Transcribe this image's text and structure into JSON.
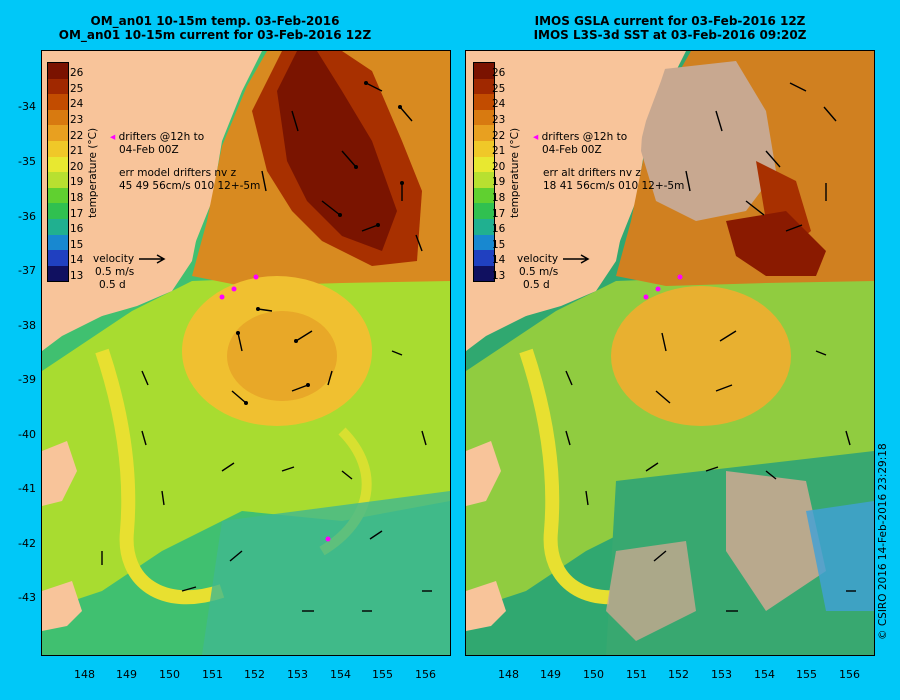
{
  "left": {
    "title_line1": "OM_an01 10-15m temp. 03-Feb-2016",
    "title_line2": "OM_an01 10-15m current for 03-Feb-2016 12Z",
    "drifters_line1": "drifters @12h to",
    "drifters_line2": "04-Feb 00Z",
    "err_line1": "err model drifters nv z",
    "err_line2": "45 49 56cm/s 010 12+-5m"
  },
  "right": {
    "title_line1": "IMOS GSLA current for 03-Feb-2016 12Z",
    "title_line2": "IMOS L3S-3d SST at 03-Feb-2016 09:20Z",
    "drifters_line1": "drifters @12h to",
    "drifters_line2": "04-Feb 00Z",
    "err_line1": "err alt drifters nv z",
    "err_line2": "18 41 56cm/s 010 12+-5m"
  },
  "velocity": {
    "title": "velocity",
    "speed": "0.5 m/s",
    "duration": "0.5 d"
  },
  "colorbar": {
    "title": "temperature (°C)",
    "labels": [
      "26",
      "25",
      "24",
      "23",
      "22",
      "21",
      "20",
      "19",
      "18",
      "17",
      "16",
      "15",
      "14",
      "13"
    ],
    "colors": [
      "#7a1200",
      "#a02800",
      "#c24c00",
      "#d87a10",
      "#e8a020",
      "#f0c828",
      "#e8e830",
      "#b8e030",
      "#60d030",
      "#30c050",
      "#20b090",
      "#1888d0",
      "#2040c0",
      "#101060"
    ]
  },
  "y_ticks": [
    "-34",
    "-35",
    "-36",
    "-37",
    "-38",
    "-39",
    "-40",
    "-41",
    "-42",
    "-43"
  ],
  "x_ticks": [
    "148",
    "149",
    "150",
    "151",
    "152",
    "153",
    "154",
    "155",
    "156"
  ],
  "credit": "© CSIRO 2016   14-Feb-2016 23:29:18",
  "colors": {
    "background": "#00c8f8",
    "land": "#f8c49a",
    "warm_core": "#8a1a00",
    "drifter": "#ff00ff",
    "no_data": "#c8a890"
  }
}
